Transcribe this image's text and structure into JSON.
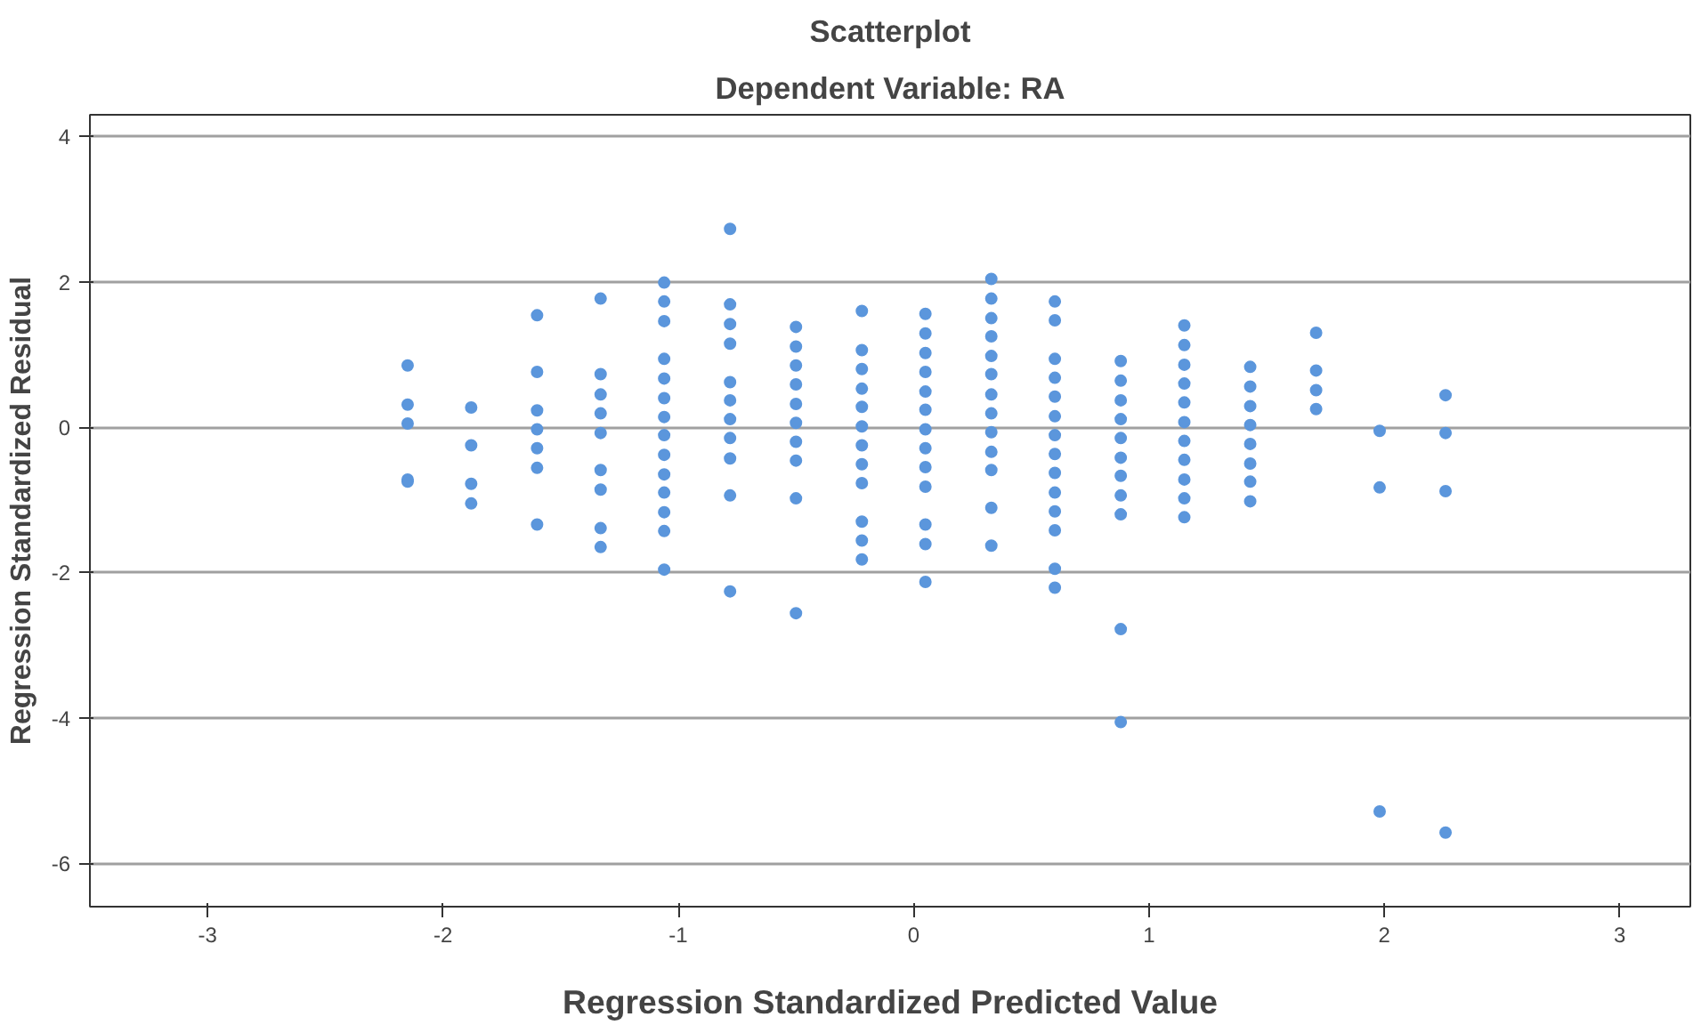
{
  "chart_data": {
    "type": "scatter",
    "title": "Scatterplot",
    "subtitle": "Dependent Variable: RA",
    "xlabel": "Regression Standardized Predicted Value",
    "ylabel": "Regression Standardized Residual",
    "xlim": [
      -3.5,
      3.3
    ],
    "ylim": [
      -6.6,
      4.3
    ],
    "xticks": [
      -3,
      -2,
      -1,
      0,
      1,
      2,
      3
    ],
    "yticks": [
      -6,
      -4,
      -2,
      0,
      2,
      4
    ],
    "grid": "y",
    "marker": "circle",
    "series": [
      {
        "color": "#5b96dc",
        "x": [
          -2.15,
          -2.15,
          -2.15,
          -2.15,
          -2.15,
          -1.88,
          -1.88,
          -1.88,
          -1.88,
          -1.6,
          -1.6,
          -1.6,
          -1.6,
          -1.6,
          -1.6,
          -1.6,
          -1.33,
          -1.33,
          -1.33,
          -1.33,
          -1.33,
          -1.33,
          -1.33,
          -1.33,
          -1.33,
          -1.06,
          -1.06,
          -1.06,
          -1.06,
          -1.06,
          -1.06,
          -1.06,
          -1.06,
          -1.06,
          -1.06,
          -1.06,
          -1.06,
          -1.06,
          -1.06,
          -0.78,
          -0.78,
          -0.78,
          -0.78,
          -0.78,
          -0.78,
          -0.78,
          -0.78,
          -0.78,
          -0.78,
          -0.78,
          -0.5,
          -0.5,
          -0.5,
          -0.5,
          -0.5,
          -0.5,
          -0.5,
          -0.5,
          -0.5,
          -0.5,
          -0.22,
          -0.22,
          -0.22,
          -0.22,
          -0.22,
          -0.22,
          -0.22,
          -0.22,
          -0.22,
          -0.22,
          -0.22,
          -0.22,
          0.05,
          0.05,
          0.05,
          0.05,
          0.05,
          0.05,
          0.05,
          0.05,
          0.05,
          0.05,
          0.05,
          0.05,
          0.05,
          0.33,
          0.33,
          0.33,
          0.33,
          0.33,
          0.33,
          0.33,
          0.33,
          0.33,
          0.33,
          0.33,
          0.33,
          0.33,
          0.6,
          0.6,
          0.6,
          0.6,
          0.6,
          0.6,
          0.6,
          0.6,
          0.6,
          0.6,
          0.6,
          0.6,
          0.6,
          0.6,
          0.88,
          0.88,
          0.88,
          0.88,
          0.88,
          0.88,
          0.88,
          0.88,
          0.88,
          0.88,
          0.88,
          1.15,
          1.15,
          1.15,
          1.15,
          1.15,
          1.15,
          1.15,
          1.15,
          1.15,
          1.15,
          1.15,
          1.43,
          1.43,
          1.43,
          1.43,
          1.43,
          1.43,
          1.43,
          1.43,
          1.71,
          1.71,
          1.71,
          1.71,
          1.98,
          1.98,
          1.98,
          2.26,
          2.26,
          2.26,
          2.26
        ],
        "values": [
          0.85,
          0.31,
          0.05,
          -0.72,
          -0.75,
          0.27,
          -0.25,
          -0.78,
          -1.05,
          1.54,
          0.76,
          0.23,
          -0.03,
          -0.29,
          -0.56,
          -1.34,
          1.77,
          0.73,
          0.45,
          0.19,
          -0.08,
          -0.59,
          -0.86,
          -1.39,
          -1.65,
          1.99,
          1.73,
          1.46,
          0.94,
          0.67,
          0.4,
          0.14,
          -0.11,
          -0.38,
          -0.65,
          -0.9,
          -1.17,
          -1.43,
          -1.96,
          2.73,
          1.69,
          1.42,
          1.15,
          0.62,
          0.37,
          0.11,
          -0.15,
          -0.43,
          -0.94,
          -2.26,
          1.38,
          1.11,
          0.85,
          0.59,
          0.32,
          0.06,
          -0.2,
          -0.46,
          -0.98,
          -2.56,
          1.6,
          1.06,
          0.8,
          0.53,
          0.28,
          0.01,
          -0.25,
          -0.51,
          -0.77,
          -1.3,
          -1.56,
          -1.82,
          1.56,
          1.29,
          1.02,
          0.76,
          0.49,
          0.24,
          -0.03,
          -0.29,
          -0.55,
          -0.82,
          -1.34,
          -1.61,
          -2.13,
          2.04,
          1.77,
          1.5,
          1.25,
          0.98,
          0.73,
          0.45,
          0.19,
          -0.07,
          -0.34,
          -0.59,
          -1.11,
          -1.63,
          1.73,
          1.47,
          0.94,
          0.68,
          0.42,
          0.15,
          -0.11,
          -0.37,
          -0.63,
          -0.9,
          -1.16,
          -1.42,
          -1.95,
          -2.21,
          0.91,
          0.64,
          0.37,
          0.11,
          -0.15,
          -0.42,
          -0.67,
          -0.94,
          -1.2,
          -2.78,
          -4.06,
          1.4,
          1.13,
          0.86,
          0.6,
          0.34,
          0.07,
          -0.19,
          -0.45,
          -0.72,
          -0.98,
          -1.24,
          0.83,
          0.56,
          0.29,
          0.03,
          -0.23,
          -0.5,
          -0.75,
          -1.02,
          1.3,
          0.78,
          0.51,
          0.25,
          -0.05,
          -0.83,
          -5.29,
          0.44,
          -0.08,
          -0.88,
          -5.58
        ]
      }
    ]
  }
}
